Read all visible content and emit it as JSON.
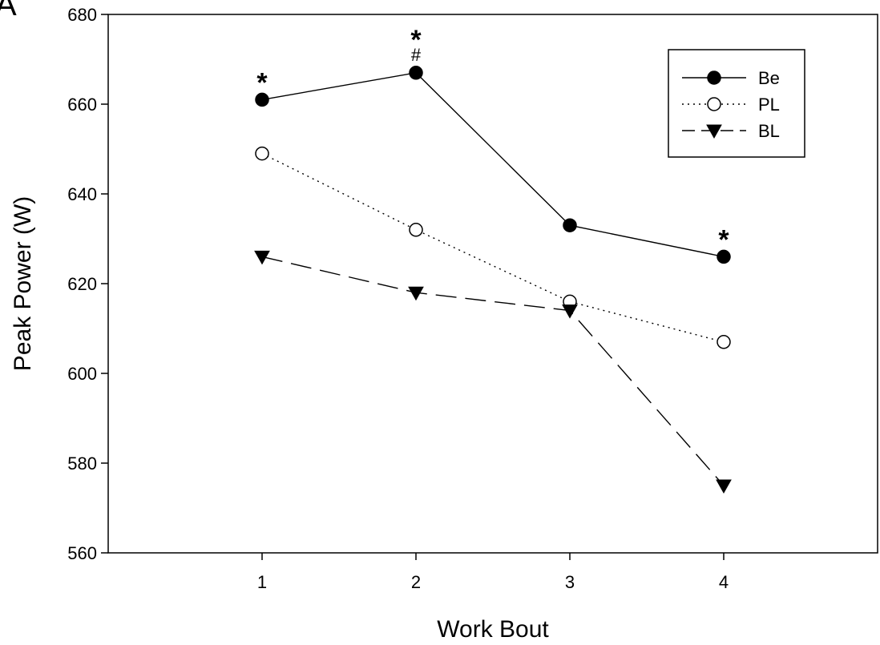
{
  "panel_label": "A",
  "chart_data": {
    "type": "line",
    "title": "",
    "xlabel": "Work Bout",
    "ylabel": "Peak Power (W)",
    "x": [
      1,
      2,
      3,
      4
    ],
    "x_ticks": [
      "1",
      "2",
      "3",
      "4"
    ],
    "xlim": [
      0,
      5
    ],
    "ylim": [
      560,
      680
    ],
    "y_ticks": [
      "560",
      "580",
      "600",
      "620",
      "640",
      "660",
      "680"
    ],
    "grid": false,
    "legend_position": "top-right",
    "series": [
      {
        "name": "Be",
        "values": [
          661,
          667,
          633,
          626
        ],
        "marker": "filled-circle",
        "line_style": "solid",
        "color": "#000000"
      },
      {
        "name": "PL",
        "values": [
          649,
          632,
          616,
          607
        ],
        "marker": "open-circle",
        "line_style": "dotted",
        "color": "#000000"
      },
      {
        "name": "BL",
        "values": [
          626,
          618,
          614,
          575
        ],
        "marker": "filled-triangle-down",
        "line_style": "dashed",
        "color": "#000000"
      }
    ],
    "annotations": [
      {
        "text": "*",
        "x": 1,
        "series": "Be"
      },
      {
        "text": "*",
        "x": 2,
        "series": "Be"
      },
      {
        "text": "#",
        "x": 2,
        "series": "Be"
      },
      {
        "text": "*",
        "x": 4,
        "series": "Be"
      }
    ]
  }
}
